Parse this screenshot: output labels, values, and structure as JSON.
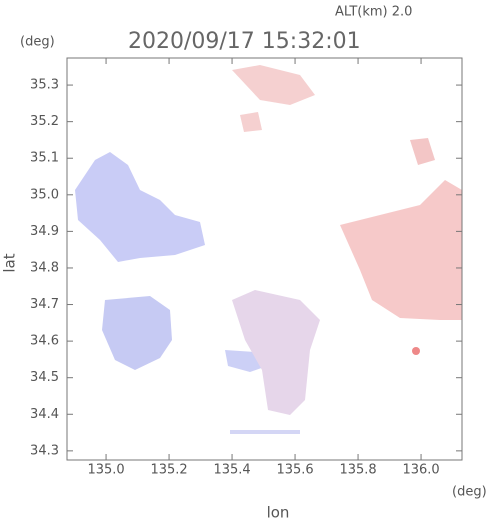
{
  "chart_data": {
    "type": "map",
    "title": "2020/09/17 15:32:01",
    "altitude_label": "ALT(km) 2.0",
    "y_unit": "(deg)",
    "x_unit": "(deg)",
    "ylabel": "lat",
    "xlabel": "lon",
    "xlim": [
      134.876,
      136.13
    ],
    "ylim": [
      34.275,
      35.374
    ],
    "xticks": [
      {
        "value": 135,
        "label": "135.0"
      },
      135.2,
      135.4,
      135.6,
      135.8,
      {
        "value": 136,
        "label": "136.0"
      }
    ],
    "yticks": [
      34.3,
      34.4,
      34.5,
      34.6,
      34.7,
      34.8,
      34.9,
      {
        "value": 35,
        "label": "35.0"
      },
      35.1,
      35.2,
      35.3
    ]
  }
}
